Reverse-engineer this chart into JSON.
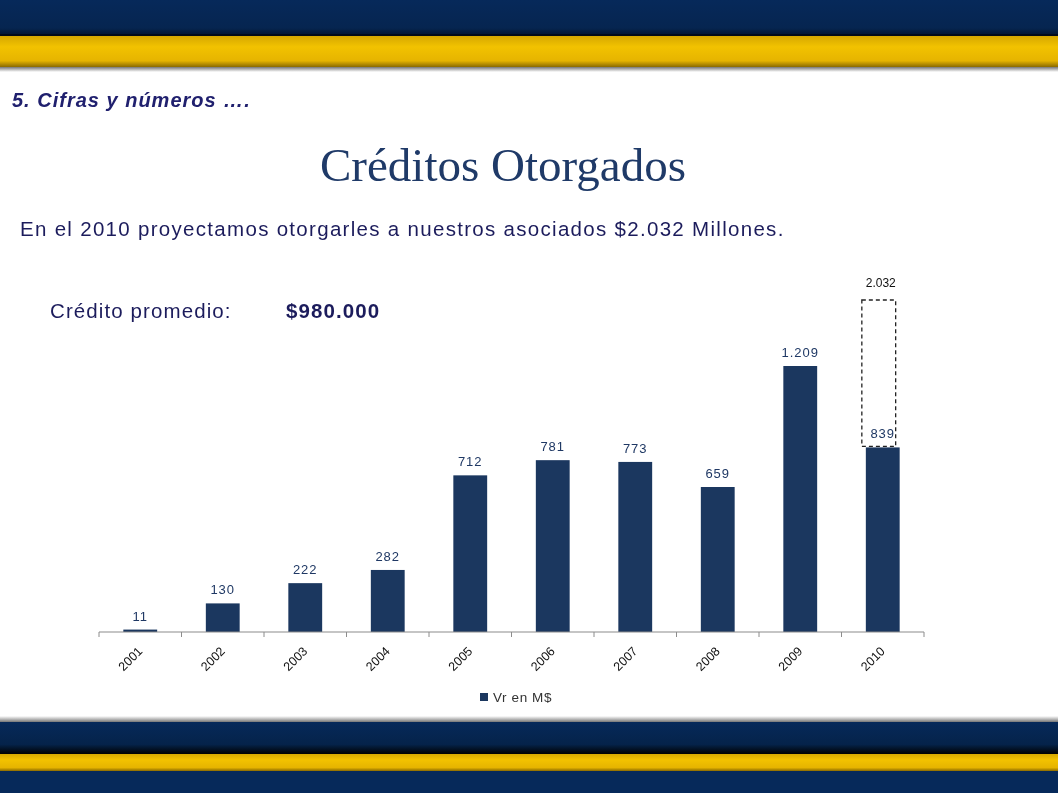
{
  "chart_data": {
    "type": "bar",
    "title": "Créditos Otorgados",
    "subtitle": "En el 2010 proyectamos otorgarles a nuestros asociados $2.032 Millones.",
    "annotations": [
      "5. Cifras y números ….",
      "Crédito promedio:",
      "$980.000",
      "2.032"
    ],
    "categories": [
      "2001",
      "2002",
      "2003",
      "2004",
      "2005",
      "2006",
      "2007",
      "2008",
      "2009",
      "2010"
    ],
    "series": [
      {
        "name": "Vr en M$",
        "color": "#1b375f",
        "values": [
          11,
          130,
          222,
          282,
          712,
          781,
          773,
          659,
          1209,
          839
        ],
        "value_labels": [
          "11",
          "130",
          "222",
          "282",
          "712",
          "781",
          "773",
          "659",
          "1.209",
          "839"
        ]
      }
    ],
    "legend": "bottom"
  }
}
